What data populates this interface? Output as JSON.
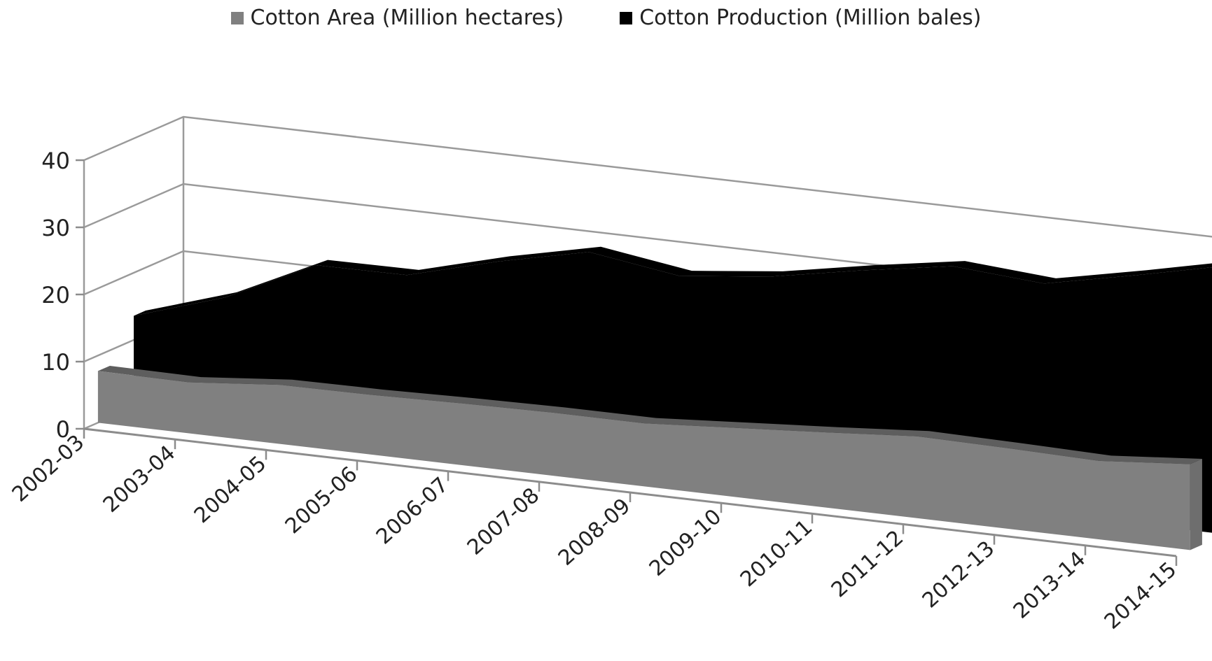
{
  "chart_data": {
    "type": "area",
    "categories": [
      "2002-03",
      "2003-04",
      "2004-05",
      "2005-06",
      "2006-07",
      "2007-08",
      "2008-09",
      "2009-10",
      "2010-11",
      "2011-12",
      "2012-13",
      "2013-14",
      "2014-15"
    ],
    "series": [
      {
        "name": "Cotton Area (Million hectares)",
        "values": [
          7.7,
          7.6,
          8.8,
          8.9,
          9.2,
          9.4,
          9.4,
          10.3,
          11.2,
          12.2,
          12.0,
          11.7,
          12.8
        ],
        "color": "#808080"
      },
      {
        "name": "Cotton Production (Million bales)",
        "values": [
          13.6,
          17.9,
          24.3,
          24.4,
          28.0,
          31.0,
          29.0,
          30.5,
          33.0,
          35.2,
          34.2,
          37.0,
          40.0
        ],
        "color": "#000000"
      }
    ],
    "yticks": [
      0,
      10,
      20,
      30,
      40
    ],
    "ylim": [
      0,
      40
    ],
    "legend_position": "top-center",
    "grid": true,
    "projection": "3d-area"
  }
}
